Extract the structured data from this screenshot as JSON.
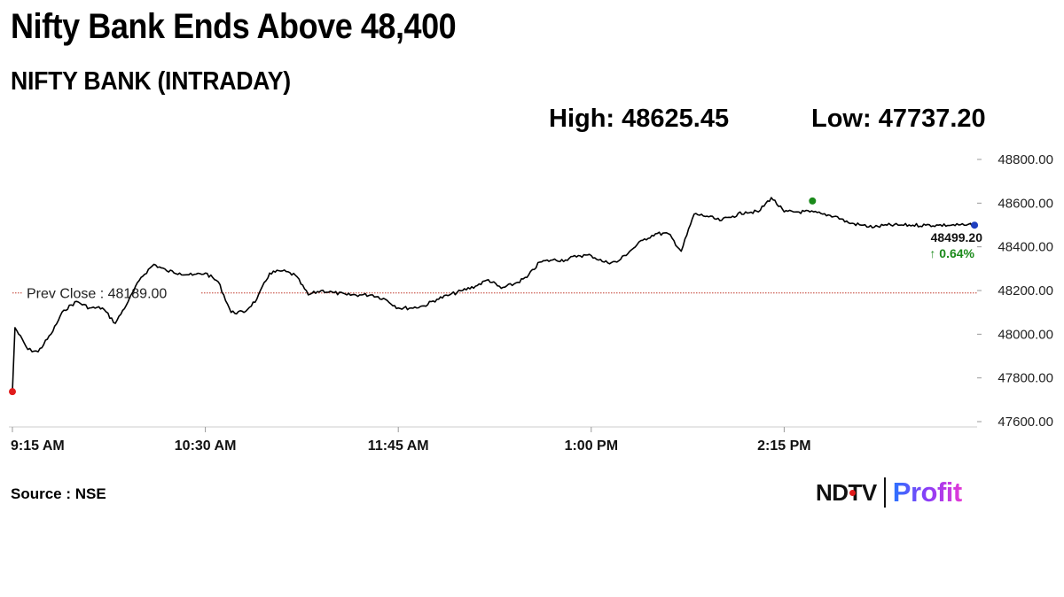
{
  "headline": "Nifty Bank Ends Above 48,400",
  "source": "Source : NSE",
  "logo": {
    "brand": "NDTV",
    "product": "Profit"
  },
  "colors": {
    "line": "#000000",
    "prev_close_line": "#c0392b",
    "open_marker": "#e01b1b",
    "high_marker": "#1a8a1a",
    "close_marker": "#1f3fbf",
    "change_up": "#1a8a1a",
    "axis": "#cccccc"
  },
  "chart_data": {
    "type": "line",
    "title": "NIFTY BANK (INTRADAY)",
    "high_label": "High: 48625.45",
    "low_label": "Low: 47737.20",
    "high": 48625.45,
    "low": 47737.2,
    "prev_close_label": "Prev Close : 48189.00",
    "prev_close": 48189.0,
    "last_label": "48499.20",
    "change_label": "↑ 0.64%",
    "last": 48499.2,
    "ylim": [
      47600,
      48800
    ],
    "yticks": [
      48800,
      48600,
      48400,
      48200,
      48000,
      47800,
      47600
    ],
    "ytick_labels": [
      "48800.00",
      "48600.00",
      "48400.00",
      "48200.00",
      "48000.00",
      "47800.00",
      "47600.00"
    ],
    "xlim": [
      "9:15",
      "15:30"
    ],
    "xticks": [
      "9:15",
      "10:30",
      "11:45",
      "13:00",
      "14:15"
    ],
    "xtick_labels": [
      "9:15 AM",
      "10:30 AM",
      "11:45 AM",
      "1:00 PM",
      "2:15 PM"
    ],
    "grid": false,
    "series": [
      {
        "x": [
          "9:15",
          "9:16",
          "9:21",
          "9:25",
          "9:30",
          "9:35",
          "9:40",
          "9:45",
          "9:50",
          "9:55",
          "10:00",
          "10:05",
          "10:10",
          "10:15",
          "10:20",
          "10:25",
          "10:30",
          "10:35",
          "10:40",
          "10:45",
          "10:50",
          "10:55",
          "11:00",
          "11:05",
          "11:10",
          "11:15",
          "11:20",
          "11:25",
          "11:30",
          "11:35",
          "11:40",
          "11:45",
          "11:50",
          "11:55",
          "12:00",
          "12:05",
          "12:10",
          "12:15",
          "12:20",
          "12:25",
          "12:30",
          "12:35",
          "12:40",
          "12:45",
          "12:50",
          "12:55",
          "13:00",
          "13:05",
          "13:10",
          "13:15",
          "13:20",
          "13:25",
          "13:30",
          "13:35",
          "13:40",
          "13:45",
          "13:50",
          "13:55",
          "14:00",
          "14:05",
          "14:10",
          "14:15",
          "14:20",
          "14:25",
          "14:30",
          "14:35",
          "14:40",
          "14:45",
          "14:50",
          "14:55",
          "15:00",
          "15:05",
          "15:10",
          "15:15",
          "15:20",
          "15:25",
          "15:29"
        ],
        "y": [
          47737.2,
          48030,
          47930,
          47920,
          48000,
          48110,
          48150,
          48120,
          48120,
          48050,
          48150,
          48260,
          48320,
          48290,
          48280,
          48270,
          48280,
          48240,
          48100,
          48100,
          48160,
          48280,
          48290,
          48270,
          48180,
          48200,
          48190,
          48180,
          48180,
          48180,
          48160,
          48120,
          48120,
          48130,
          48160,
          48180,
          48200,
          48220,
          48250,
          48210,
          48230,
          48260,
          48330,
          48340,
          48340,
          48360,
          48360,
          48330,
          48330,
          48380,
          48430,
          48460,
          48460,
          48380,
          48550,
          48540,
          48520,
          48540,
          48560,
          48560,
          48625.45,
          48560,
          48560,
          48560,
          48550,
          48540,
          48510,
          48499.2,
          48490,
          48499.2,
          48499.2,
          48499.2,
          48499.2,
          48499.2,
          48499.2,
          48499.2,
          48499.2
        ]
      }
    ],
    "markers": [
      {
        "name": "open-low",
        "x": "9:15",
        "y": 47737.2
      },
      {
        "name": "high",
        "x": "14:26",
        "y": 48610
      },
      {
        "name": "close",
        "x": "15:29",
        "y": 48499.2
      }
    ]
  }
}
